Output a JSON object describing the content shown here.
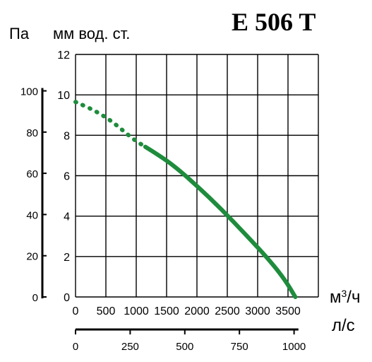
{
  "chart_data": {
    "type": "line",
    "title": "E 506 T",
    "left_outer_axis": {
      "unit": "Па",
      "ticks": [
        "0",
        "20",
        "40",
        "60",
        "80",
        "100"
      ]
    },
    "y_axis": {
      "unit": "мм вод. ст.",
      "ticks": [
        "0",
        "2",
        "4",
        "6",
        "8",
        "10",
        "12"
      ],
      "range": [
        0,
        12
      ]
    },
    "x_axis": {
      "unit": "м3/ч",
      "unit_base": "м",
      "unit_sup": "3",
      "unit_tail": "/ч",
      "ticks": [
        "0",
        "500",
        "1000",
        "1500",
        "2000",
        "2500",
        "3000",
        "3500"
      ],
      "range": [
        0,
        4000
      ]
    },
    "x2_axis": {
      "unit": "л/с",
      "ticks": [
        "0",
        "250",
        "500",
        "750",
        "1000"
      ]
    },
    "grid": true,
    "series": [
      {
        "color": "#1e8c3c",
        "style": "dotted-then-solid",
        "points": [
          [
            0,
            9.65
          ],
          [
            300,
            9.25
          ],
          [
            600,
            8.7
          ],
          [
            950,
            7.8
          ],
          [
            1300,
            7.15
          ],
          [
            1600,
            6.55
          ],
          [
            2000,
            5.5
          ],
          [
            2400,
            4.35
          ],
          [
            2800,
            3.1
          ],
          [
            3200,
            1.8
          ],
          [
            3450,
            0.85
          ],
          [
            3620,
            0.0
          ]
        ],
        "dotted_until_x": 1150
      }
    ]
  }
}
